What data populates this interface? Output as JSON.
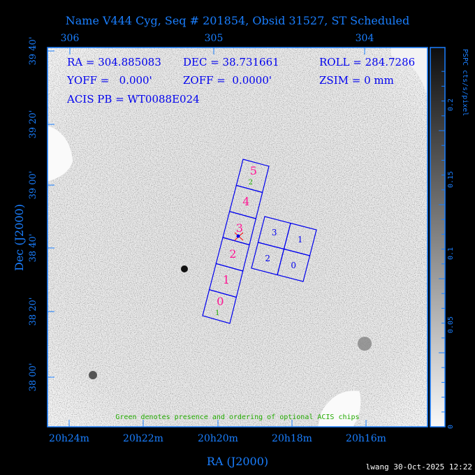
{
  "title": "Name V444 Cyg, Seq # 201854, Obsid 31527, ST Scheduled",
  "info": {
    "ra": "RA = 304.885083",
    "dec": "DEC = 38.731661",
    "roll": "ROLL = 284.7286",
    "yoff": "YOFF =   0.000'",
    "zoff": "ZOFF =  0.0000'",
    "zsim": "ZSIM = 0 mm",
    "acis_pb": "ACIS PB = WT0088E024"
  },
  "top_axis_ticks": [
    "306",
    "305",
    "304"
  ],
  "bottom_axis_ticks": [
    "20h24m",
    "20h22m",
    "20h20m",
    "20h18m",
    "20h16m"
  ],
  "left_axis_ticks": [
    "39 40'",
    "39 20'",
    "39 00'",
    "38 40'",
    "38 20'",
    "38 00'"
  ],
  "xlabel": "RA (J2000)",
  "ylabel": "Dec (J2000)",
  "colorbar": {
    "label": "PSPC cts/s/pixel",
    "ticks": [
      "0",
      "0.05",
      "0.1",
      "0.15",
      "0.2"
    ],
    "colormap": "grayscale (white=0, black=max)"
  },
  "acis_s_chips": [
    "0",
    "1",
    "2",
    "3",
    "4",
    "5"
  ],
  "acis_i_chips": [
    "0",
    "1",
    "2",
    "3"
  ],
  "optional_chips": {
    "s5": "2",
    "s0": "1"
  },
  "note": "Green denotes presence and ordering of optional ACIS chips",
  "footer": "lwang 30-Oct-2025 12:22",
  "colors": {
    "axis": "#1a7fff",
    "chip_outline": "#0000ee",
    "chip_label": "#ff1493",
    "optional": "#22aa00",
    "aimpoint": "#ff0000"
  }
}
